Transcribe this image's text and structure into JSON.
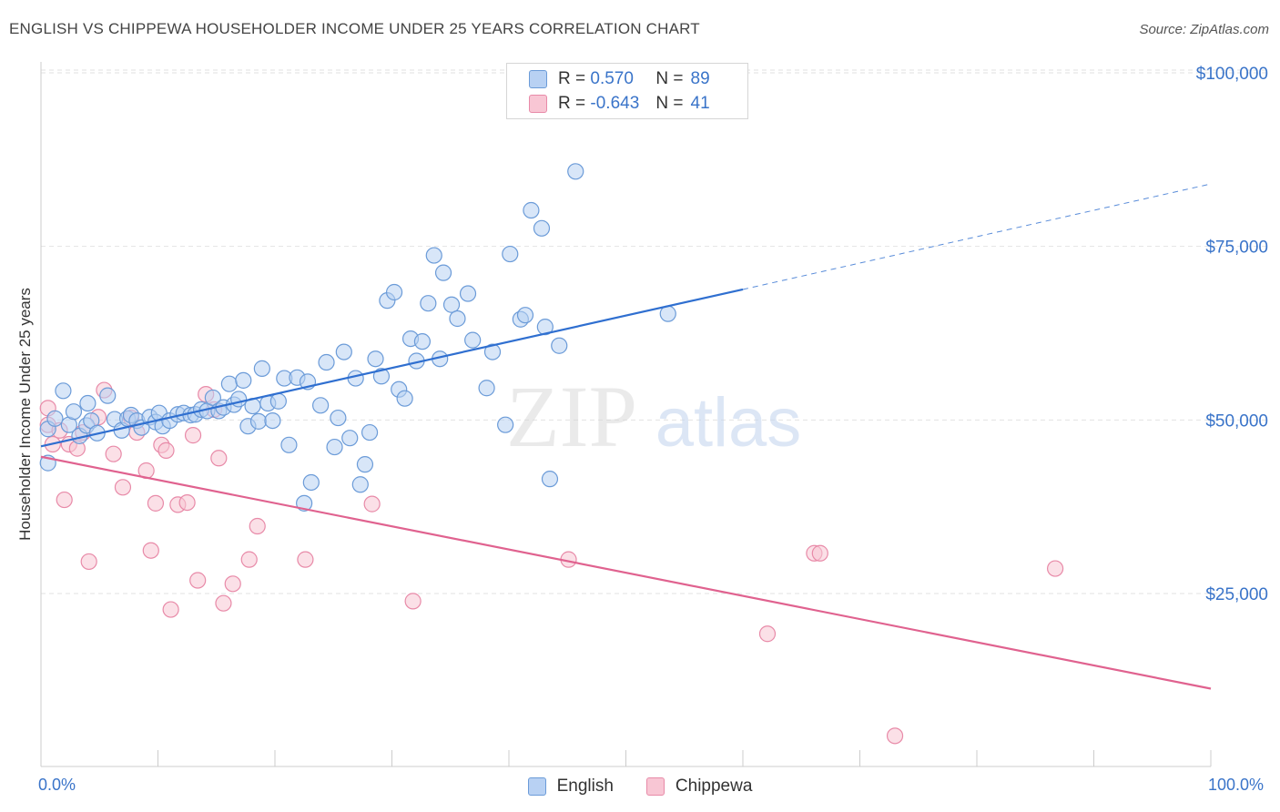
{
  "title": "ENGLISH VS CHIPPEWA HOUSEHOLDER INCOME UNDER 25 YEARS CORRELATION CHART",
  "source": "Source: ZipAtlas.com",
  "watermark": {
    "zip": "ZIP",
    "atlas": "atlas"
  },
  "legend": {
    "english": {
      "r_label": "R =",
      "r_value": "0.570",
      "n_label": "N =",
      "n_value": "89"
    },
    "chippewa": {
      "r_label": "R =",
      "r_value": "-0.643",
      "n_label": "N =",
      "n_value": "41"
    }
  },
  "colors": {
    "english_fill": "#b8d1f3",
    "english_stroke": "#6b9bd8",
    "english_line": "#2f6fd0",
    "chippewa_fill": "#f8c6d4",
    "chippewa_stroke": "#e88aa8",
    "chippewa_line": "#e0628f",
    "grid": "#e2e2e2",
    "tick_text": "#3a74c9"
  },
  "chart_data": {
    "type": "scatter",
    "title": "ENGLISH VS CHIPPEWA HOUSEHOLDER INCOME UNDER 25 YEARS CORRELATION CHART",
    "xlabel": "",
    "ylabel": "Householder Income Under 25 years",
    "xlim": [
      0,
      100
    ],
    "ylim": [
      0,
      105000
    ],
    "x_tick_labels": [
      "0.0%",
      "100.0%"
    ],
    "y_ticks": [
      {
        "value": 25000,
        "label": "$25,000"
      },
      {
        "value": 50000,
        "label": "$50,000"
      },
      {
        "value": 75000,
        "label": "$75,000"
      },
      {
        "value": 100000,
        "label": "$100,000"
      }
    ],
    "grid": "horizontal dashed",
    "legend_position": "top-center",
    "series": [
      {
        "name": "English",
        "trend": {
          "x": [
            0,
            60
          ],
          "y": [
            46200,
            68800
          ],
          "extended_to": {
            "x": 100,
            "y": 84000
          }
        },
        "points": [
          [
            0.6,
            43800
          ],
          [
            0.6,
            48700
          ],
          [
            1.2,
            50200
          ],
          [
            1.9,
            54200
          ],
          [
            2.4,
            49300
          ],
          [
            2.8,
            51200
          ],
          [
            3.3,
            47700
          ],
          [
            3.9,
            49200
          ],
          [
            4.0,
            52400
          ],
          [
            4.3,
            49900
          ],
          [
            4.8,
            48100
          ],
          [
            5.7,
            53500
          ],
          [
            6.3,
            50100
          ],
          [
            6.9,
            48500
          ],
          [
            7.4,
            50200
          ],
          [
            7.7,
            50700
          ],
          [
            8.2,
            49900
          ],
          [
            8.6,
            48900
          ],
          [
            9.3,
            50400
          ],
          [
            9.8,
            49700
          ],
          [
            10.1,
            51000
          ],
          [
            10.4,
            49100
          ],
          [
            11.0,
            49900
          ],
          [
            11.7,
            50800
          ],
          [
            12.2,
            51000
          ],
          [
            12.8,
            50700
          ],
          [
            13.2,
            50800
          ],
          [
            13.7,
            51500
          ],
          [
            14.2,
            51300
          ],
          [
            14.7,
            53200
          ],
          [
            15.2,
            51300
          ],
          [
            15.6,
            51800
          ],
          [
            16.1,
            55200
          ],
          [
            16.5,
            52200
          ],
          [
            16.9,
            53000
          ],
          [
            17.3,
            55700
          ],
          [
            17.7,
            49100
          ],
          [
            18.1,
            52000
          ],
          [
            18.6,
            49800
          ],
          [
            18.9,
            57400
          ],
          [
            19.4,
            52400
          ],
          [
            19.8,
            49900
          ],
          [
            20.3,
            52700
          ],
          [
            20.8,
            56000
          ],
          [
            21.2,
            46400
          ],
          [
            21.9,
            56100
          ],
          [
            22.5,
            38000
          ],
          [
            22.8,
            55500
          ],
          [
            23.1,
            41000
          ],
          [
            23.9,
            52100
          ],
          [
            24.4,
            58300
          ],
          [
            25.1,
            46100
          ],
          [
            25.4,
            50300
          ],
          [
            25.9,
            59800
          ],
          [
            26.4,
            47400
          ],
          [
            26.9,
            56000
          ],
          [
            27.3,
            40700
          ],
          [
            27.7,
            43600
          ],
          [
            28.1,
            48200
          ],
          [
            28.6,
            58800
          ],
          [
            29.1,
            56300
          ],
          [
            29.6,
            67200
          ],
          [
            30.2,
            68400
          ],
          [
            30.6,
            54400
          ],
          [
            31.1,
            53100
          ],
          [
            31.6,
            61700
          ],
          [
            32.1,
            58500
          ],
          [
            32.6,
            61300
          ],
          [
            33.1,
            66800
          ],
          [
            33.6,
            73700
          ],
          [
            34.1,
            58800
          ],
          [
            34.4,
            71200
          ],
          [
            35.1,
            66600
          ],
          [
            35.6,
            64600
          ],
          [
            36.5,
            68200
          ],
          [
            36.9,
            61500
          ],
          [
            38.1,
            54600
          ],
          [
            38.6,
            59800
          ],
          [
            39.7,
            49300
          ],
          [
            40.1,
            73900
          ],
          [
            41.9,
            80200
          ],
          [
            42.8,
            77600
          ],
          [
            41.0,
            64500
          ],
          [
            41.4,
            65100
          ],
          [
            43.1,
            63400
          ],
          [
            43.5,
            41500
          ],
          [
            44.3,
            60700
          ],
          [
            45.7,
            85800
          ],
          [
            53.6,
            65300
          ]
        ]
      },
      {
        "name": "Chippewa",
        "trend": {
          "x": [
            0,
            100
          ],
          "y": [
            44700,
            11300
          ]
        },
        "points": [
          [
            0.6,
            51700
          ],
          [
            0.6,
            49300
          ],
          [
            1.0,
            46500
          ],
          [
            1.6,
            48500
          ],
          [
            2.0,
            38500
          ],
          [
            2.4,
            46500
          ],
          [
            3.1,
            45900
          ],
          [
            3.6,
            48200
          ],
          [
            4.1,
            29600
          ],
          [
            4.9,
            50400
          ],
          [
            5.4,
            54300
          ],
          [
            6.2,
            45100
          ],
          [
            7.0,
            40300
          ],
          [
            7.7,
            50300
          ],
          [
            8.2,
            48200
          ],
          [
            9.0,
            42700
          ],
          [
            9.4,
            31200
          ],
          [
            9.8,
            38000
          ],
          [
            10.3,
            46400
          ],
          [
            10.7,
            45600
          ],
          [
            11.1,
            22700
          ],
          [
            11.7,
            37800
          ],
          [
            12.5,
            38100
          ],
          [
            13.0,
            47800
          ],
          [
            13.4,
            26900
          ],
          [
            14.1,
            53700
          ],
          [
            14.8,
            51500
          ],
          [
            15.2,
            44500
          ],
          [
            15.6,
            23600
          ],
          [
            16.4,
            26400
          ],
          [
            17.8,
            29900
          ],
          [
            18.5,
            34700
          ],
          [
            22.6,
            29900
          ],
          [
            28.3,
            37900
          ],
          [
            31.8,
            23900
          ],
          [
            45.1,
            29900
          ],
          [
            62.1,
            19200
          ],
          [
            66.1,
            30800
          ],
          [
            66.6,
            30800
          ],
          [
            73.0,
            4500
          ],
          [
            86.7,
            28600
          ]
        ]
      }
    ]
  }
}
